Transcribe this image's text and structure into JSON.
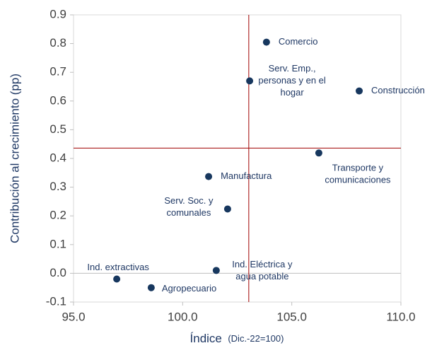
{
  "chart_data": {
    "type": "scatter",
    "ylabel": "Contribución al crecimiento (pp)",
    "xlabel": "Índice",
    "xlabel_note": "(Dic.-22=100)",
    "color": "#17375e",
    "ref_color": "#a00000",
    "x_ref": 103.03,
    "y_ref": 0.436,
    "zero_line": true,
    "xlim": [
      95,
      110
    ],
    "ylim": [
      -0.1,
      0.9
    ],
    "xticks": [
      {
        "value": 95,
        "label": "95.0"
      },
      {
        "value": 100,
        "label": "100.0"
      },
      {
        "value": 105,
        "label": "105.0"
      },
      {
        "value": 110,
        "label": "110.0"
      }
    ],
    "yticks": [
      -0.1,
      {
        "value": 0,
        "label": "0.0"
      },
      0.1,
      0.2,
      0.3,
      0.4,
      0.5,
      0.6,
      0.7,
      0.8,
      0.9
    ],
    "points": [
      {
        "label": [
          "Comercio"
        ],
        "x": 103.84,
        "y": 0.805
      },
      {
        "label": [
          "Serv. Emp.,",
          "personas y en el",
          "hogar"
        ],
        "x": 103.07,
        "y": 0.67
      },
      {
        "label": [
          "Construcción"
        ],
        "x": 108.09,
        "y": 0.635
      },
      {
        "label": [
          "Transporte y",
          "comunicaciones"
        ],
        "x": 106.24,
        "y": 0.419
      },
      {
        "label": [
          "Manufactura"
        ],
        "x": 101.19,
        "y": 0.337
      },
      {
        "label": [
          "Serv. Soc. y",
          "comunales"
        ],
        "x": 102.06,
        "y": 0.224
      },
      {
        "label": [
          "Ind. Eléctrica y",
          "agua potable"
        ],
        "x": 101.54,
        "y": 0.01
      },
      {
        "label": [
          "Ind. extractivas"
        ],
        "x": 96.98,
        "y": -0.02
      },
      {
        "label": [
          "Agropecuario"
        ],
        "x": 98.56,
        "y": -0.05
      }
    ]
  }
}
